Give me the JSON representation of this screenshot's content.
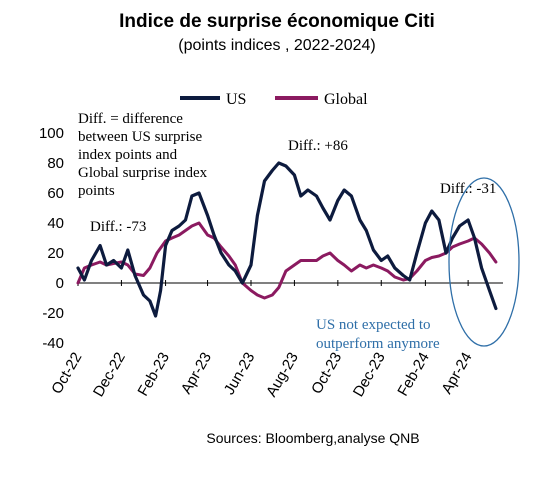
{
  "chart_data": {
    "type": "line",
    "title": "Indice de surprise économique Citi",
    "subtitle": "(points indices , 2022-2024)",
    "source": "Sources: Bloomberg,analyse  QNB",
    "ylim": [
      -40,
      100
    ],
    "yticks": [
      -40,
      -20,
      0,
      20,
      40,
      60,
      80,
      100
    ],
    "x_range": [
      "2022-10-01",
      "2024-05-20"
    ],
    "xticks": [
      {
        "date": "2022-10-01",
        "label": "Oct-22"
      },
      {
        "date": "2022-12-01",
        "label": "Dec-22"
      },
      {
        "date": "2023-02-01",
        "label": "Feb-23"
      },
      {
        "date": "2023-04-01",
        "label": "Apr-23"
      },
      {
        "date": "2023-06-01",
        "label": "Jun-23"
      },
      {
        "date": "2023-08-01",
        "label": "Aug-23"
      },
      {
        "date": "2023-10-01",
        "label": "Oct-23"
      },
      {
        "date": "2023-12-01",
        "label": "Dec-23"
      },
      {
        "date": "2024-02-01",
        "label": "Feb-24"
      },
      {
        "date": "2024-04-01",
        "label": "Apr-24"
      }
    ],
    "legend_position": "top",
    "series": [
      {
        "name": "US",
        "color": "#0d1b3e",
        "points": [
          [
            "2022-10-01",
            10
          ],
          [
            "2022-10-10",
            2
          ],
          [
            "2022-10-20",
            15
          ],
          [
            "2022-11-01",
            25
          ],
          [
            "2022-11-10",
            12
          ],
          [
            "2022-11-20",
            15
          ],
          [
            "2022-12-01",
            10
          ],
          [
            "2022-12-10",
            22
          ],
          [
            "2022-12-20",
            5
          ],
          [
            "2023-01-01",
            -8
          ],
          [
            "2023-01-10",
            -12
          ],
          [
            "2023-01-18",
            -22
          ],
          [
            "2023-01-25",
            -5
          ],
          [
            "2023-02-01",
            25
          ],
          [
            "2023-02-10",
            35
          ],
          [
            "2023-02-20",
            38
          ],
          [
            "2023-03-01",
            42
          ],
          [
            "2023-03-10",
            58
          ],
          [
            "2023-03-20",
            60
          ],
          [
            "2023-04-01",
            45
          ],
          [
            "2023-04-10",
            32
          ],
          [
            "2023-04-20",
            20
          ],
          [
            "2023-05-01",
            12
          ],
          [
            "2023-05-10",
            8
          ],
          [
            "2023-05-20",
            0
          ],
          [
            "2023-06-01",
            12
          ],
          [
            "2023-06-10",
            45
          ],
          [
            "2023-06-20",
            68
          ],
          [
            "2023-07-01",
            75
          ],
          [
            "2023-07-10",
            80
          ],
          [
            "2023-07-20",
            78
          ],
          [
            "2023-08-01",
            72
          ],
          [
            "2023-08-10",
            58
          ],
          [
            "2023-08-20",
            62
          ],
          [
            "2023-09-01",
            58
          ],
          [
            "2023-09-10",
            50
          ],
          [
            "2023-09-20",
            42
          ],
          [
            "2023-10-01",
            55
          ],
          [
            "2023-10-10",
            62
          ],
          [
            "2023-10-20",
            58
          ],
          [
            "2023-11-01",
            42
          ],
          [
            "2023-11-10",
            35
          ],
          [
            "2023-11-20",
            22
          ],
          [
            "2023-12-01",
            15
          ],
          [
            "2023-12-10",
            18
          ],
          [
            "2023-12-20",
            10
          ],
          [
            "2024-01-01",
            5
          ],
          [
            "2024-01-10",
            2
          ],
          [
            "2024-01-20",
            20
          ],
          [
            "2024-02-01",
            40
          ],
          [
            "2024-02-10",
            48
          ],
          [
            "2024-02-20",
            42
          ],
          [
            "2024-03-01",
            20
          ],
          [
            "2024-03-10",
            30
          ],
          [
            "2024-03-20",
            38
          ],
          [
            "2024-04-01",
            42
          ],
          [
            "2024-04-10",
            30
          ],
          [
            "2024-04-20",
            10
          ],
          [
            "2024-05-01",
            -5
          ],
          [
            "2024-05-10",
            -17
          ]
        ]
      },
      {
        "name": "Global",
        "color": "#8b1a60",
        "points": [
          [
            "2022-10-01",
            0
          ],
          [
            "2022-10-10",
            10
          ],
          [
            "2022-10-20",
            12
          ],
          [
            "2022-11-01",
            14
          ],
          [
            "2022-11-10",
            12
          ],
          [
            "2022-11-20",
            13
          ],
          [
            "2022-12-01",
            14
          ],
          [
            "2022-12-10",
            12
          ],
          [
            "2022-12-20",
            6
          ],
          [
            "2023-01-01",
            5
          ],
          [
            "2023-01-10",
            10
          ],
          [
            "2023-01-20",
            20
          ],
          [
            "2023-02-01",
            28
          ],
          [
            "2023-02-10",
            30
          ],
          [
            "2023-02-20",
            32
          ],
          [
            "2023-03-01",
            35
          ],
          [
            "2023-03-10",
            38
          ],
          [
            "2023-03-20",
            40
          ],
          [
            "2023-04-01",
            32
          ],
          [
            "2023-04-10",
            30
          ],
          [
            "2023-04-20",
            24
          ],
          [
            "2023-05-01",
            18
          ],
          [
            "2023-05-10",
            12
          ],
          [
            "2023-05-20",
            0
          ],
          [
            "2023-06-01",
            -5
          ],
          [
            "2023-06-10",
            -8
          ],
          [
            "2023-06-20",
            -10
          ],
          [
            "2023-07-01",
            -8
          ],
          [
            "2023-07-10",
            -3
          ],
          [
            "2023-07-20",
            8
          ],
          [
            "2023-08-01",
            12
          ],
          [
            "2023-08-10",
            15
          ],
          [
            "2023-08-20",
            15
          ],
          [
            "2023-09-01",
            15
          ],
          [
            "2023-09-10",
            18
          ],
          [
            "2023-09-20",
            20
          ],
          [
            "2023-10-01",
            15
          ],
          [
            "2023-10-10",
            12
          ],
          [
            "2023-10-20",
            8
          ],
          [
            "2023-11-01",
            12
          ],
          [
            "2023-11-10",
            10
          ],
          [
            "2023-11-20",
            12
          ],
          [
            "2023-12-01",
            10
          ],
          [
            "2023-12-10",
            8
          ],
          [
            "2023-12-20",
            4
          ],
          [
            "2024-01-01",
            2
          ],
          [
            "2024-01-10",
            3
          ],
          [
            "2024-01-20",
            8
          ],
          [
            "2024-02-01",
            15
          ],
          [
            "2024-02-10",
            17
          ],
          [
            "2024-02-20",
            18
          ],
          [
            "2024-03-01",
            20
          ],
          [
            "2024-03-10",
            24
          ],
          [
            "2024-03-20",
            26
          ],
          [
            "2024-04-01",
            28
          ],
          [
            "2024-04-10",
            30
          ],
          [
            "2024-04-20",
            26
          ],
          [
            "2024-05-01",
            20
          ],
          [
            "2024-05-10",
            14
          ]
        ]
      }
    ],
    "annotations": {
      "diff_definition": [
        "Diff. = difference",
        "between US surprise",
        "index points and",
        "Global surprise index",
        "points"
      ],
      "diff_1": "Diff.: -73",
      "diff_2": "Diff.: +86",
      "diff_3": "Diff.: -31",
      "callout": [
        "US not expected to",
        "outperform anymore"
      ]
    },
    "callout_color": "#2f6fa8"
  }
}
